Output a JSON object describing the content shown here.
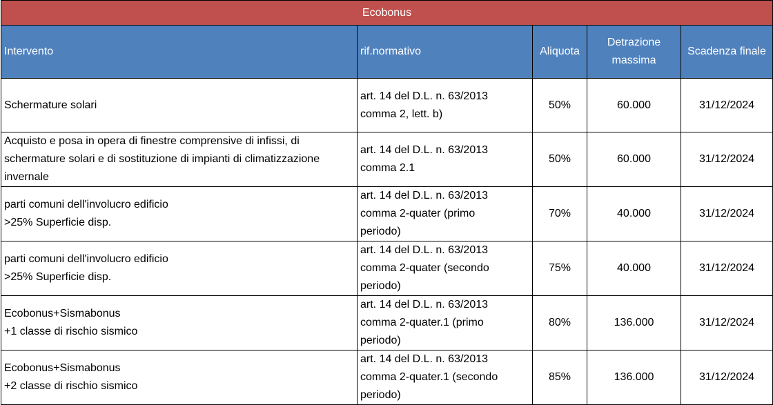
{
  "table": {
    "title": "Ecobonus",
    "headers": {
      "intervento": "Intervento",
      "rif_normativo": "rif.normativo",
      "aliquota": "Aliquota",
      "detrazione_line1": "Detrazione",
      "detrazione_line2": "massima",
      "scadenza": "Scadenza finale"
    },
    "rows": [
      {
        "intervento": [
          "Schermature solari"
        ],
        "rif": [
          "art. 14 del D.L. n. 63/2013",
          "comma 2, lett. b)"
        ],
        "aliquota": "50%",
        "detrazione": "60.000",
        "scadenza": "31/12/2024"
      },
      {
        "intervento": [
          "Acquisto e posa in opera di finestre comprensive  di  infissi,  di",
          "schermature solari e di sostituzione di impianti  di  climatizzazione",
          "invernale"
        ],
        "rif": [
          "art. 14 del D.L. n. 63/2013",
          "comma 2.1"
        ],
        "aliquota": "50%",
        "detrazione": "60.000",
        "scadenza": "31/12/2024"
      },
      {
        "intervento": [
          "parti comuni dell'involucro edificio",
          ">25% Superficie disp."
        ],
        "rif": [
          "art. 14 del D.L. n. 63/2013",
          "comma 2-quater (primo",
          "periodo)"
        ],
        "aliquota": "70%",
        "detrazione": "40.000",
        "scadenza": "31/12/2024"
      },
      {
        "intervento": [
          "parti comuni dell'involucro edificio",
          ">25% Superficie disp."
        ],
        "rif": [
          "art. 14 del D.L. n. 63/2013",
          "comma 2-quater (secondo",
          "periodo)"
        ],
        "aliquota": "75%",
        "detrazione": "40.000",
        "scadenza": "31/12/2024"
      },
      {
        "intervento": [
          "Ecobonus+Sismabonus",
          "+1 classe di rischio sismico"
        ],
        "rif": [
          "art. 14 del D.L. n. 63/2013",
          "comma 2-quater.1 (primo",
          "periodo)"
        ],
        "aliquota": "80%",
        "detrazione": "136.000",
        "scadenza": "31/12/2024"
      },
      {
        "intervento": [
          "Ecobonus+Sismabonus",
          "+2 classe di rischio sismico"
        ],
        "rif": [
          "art. 14 del D.L. n. 63/2013",
          "comma 2-quater.1 (secondo",
          "periodo)"
        ],
        "aliquota": "85%",
        "detrazione": "136.000",
        "scadenza": "31/12/2024"
      }
    ]
  },
  "colors": {
    "title_bg": "#c0504d",
    "header_bg": "#4f81bd",
    "header_text": "#ffffff",
    "border": "#000000"
  }
}
